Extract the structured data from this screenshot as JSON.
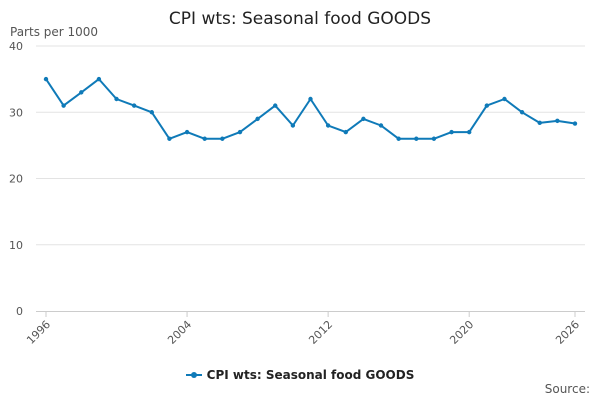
{
  "chart_data": {
    "type": "line",
    "title": "CPI wts: Seasonal food GOODS",
    "ylabel": "Parts per 1000",
    "source_label": "Source:",
    "ylim": [
      0,
      40
    ],
    "yticks": [
      0,
      10,
      20,
      30,
      40
    ],
    "xlim": [
      1996,
      2026
    ],
    "xticks": [
      1996,
      2004,
      2012,
      2020,
      2026
    ],
    "grid": true,
    "legend_position": "bottom",
    "colors": {
      "series": "#0f7ab8",
      "grid": "#e3e3e3",
      "axis": "#cccccc"
    },
    "series": [
      {
        "name": "CPI wts: Seasonal food GOODS",
        "x": [
          1996,
          1997,
          1998,
          1999,
          2000,
          2001,
          2002,
          2003,
          2004,
          2005,
          2006,
          2007,
          2008,
          2009,
          2010,
          2011,
          2012,
          2013,
          2014,
          2015,
          2016,
          2017,
          2018,
          2019,
          2020,
          2021,
          2022,
          2023,
          2024,
          2025,
          2026
        ],
        "values": [
          35,
          31,
          33,
          35,
          32,
          31,
          30,
          26,
          27,
          26,
          26,
          27,
          29,
          31,
          28,
          32,
          28,
          27,
          29,
          28,
          26,
          26,
          26,
          27,
          27,
          31,
          32,
          30,
          28.4,
          28.7,
          28.3
        ]
      }
    ]
  }
}
